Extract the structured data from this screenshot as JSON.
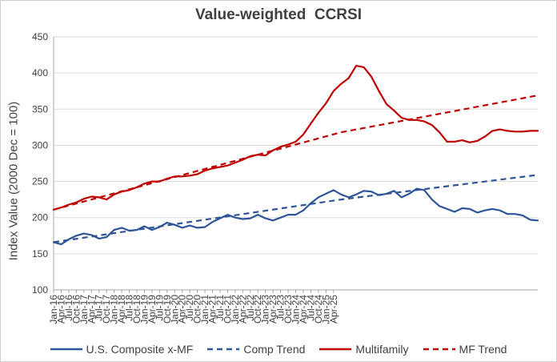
{
  "chart_data": {
    "type": "line",
    "title": "Value-weighted  CCRSI",
    "xlabel": "",
    "ylabel": "Index Value (2000 Dec = 100)",
    "ylim": [
      100,
      450
    ],
    "yticks": [
      100,
      150,
      200,
      250,
      300,
      350,
      400,
      450
    ],
    "grid": true,
    "legend_position": "bottom",
    "x_tick_labels": [
      "Jan-16",
      "Apr-16",
      "Jul-16",
      "Oct-16",
      "Jan-17",
      "Apr-17",
      "Jul-17",
      "Oct-17",
      "Jan-18",
      "Apr-18",
      "Jul-18",
      "Oct-18",
      "Jan-19",
      "Apr-19",
      "Jul-19",
      "Oct-19",
      "Jan-20",
      "Apr-20",
      "Jul-20",
      "Oct-20",
      "Jan-21",
      "Apr-21",
      "Jul-21",
      "Oct-21",
      "Jan-22",
      "Apr-22",
      "Jul-22",
      "Oct-22",
      "Jan-23",
      "Apr-23",
      "Jul-23",
      "Oct-23",
      "Jan-24",
      "Apr-24",
      "Jul-24",
      "Oct-24",
      "Jan-25",
      "Apr-25"
    ],
    "x_index_range": [
      0,
      116
    ],
    "series": [
      {
        "name": "U.S. Composite x-MF",
        "color": "#2e5597",
        "style": "solid",
        "points": [
          [
            0,
            166
          ],
          [
            3,
            163
          ],
          [
            6,
            170
          ],
          [
            9,
            175
          ],
          [
            12,
            178
          ],
          [
            15,
            176
          ],
          [
            18,
            171
          ],
          [
            21,
            173
          ],
          [
            24,
            183
          ],
          [
            27,
            186
          ],
          [
            30,
            182
          ],
          [
            33,
            183
          ],
          [
            36,
            188
          ],
          [
            39,
            183
          ],
          [
            42,
            187
          ],
          [
            45,
            193
          ],
          [
            48,
            190
          ],
          [
            51,
            186
          ],
          [
            54,
            189
          ],
          [
            57,
            186
          ],
          [
            60,
            187
          ],
          [
            63,
            194
          ],
          [
            66,
            199
          ],
          [
            69,
            204
          ],
          [
            72,
            200
          ],
          [
            75,
            198
          ],
          [
            78,
            199
          ],
          [
            81,
            204
          ],
          [
            84,
            199
          ],
          [
            87,
            196
          ],
          [
            90,
            200
          ],
          [
            93,
            204
          ],
          [
            96,
            204
          ],
          [
            99,
            210
          ],
          [
            102,
            220
          ],
          [
            105,
            228
          ],
          [
            108,
            233
          ],
          [
            111,
            238
          ],
          [
            114,
            232
          ],
          [
            117,
            228
          ],
          [
            120,
            232
          ],
          [
            123,
            237
          ],
          [
            126,
            236
          ],
          [
            129,
            231
          ],
          [
            132,
            233
          ],
          [
            135,
            237
          ],
          [
            138,
            228
          ],
          [
            141,
            233
          ],
          [
            144,
            240
          ],
          [
            147,
            238
          ],
          [
            150,
            225
          ],
          [
            153,
            216
          ],
          [
            156,
            212
          ],
          [
            159,
            208
          ],
          [
            162,
            213
          ],
          [
            165,
            212
          ],
          [
            168,
            207
          ],
          [
            171,
            210
          ],
          [
            174,
            212
          ],
          [
            177,
            210
          ],
          [
            180,
            205
          ],
          [
            183,
            205
          ],
          [
            186,
            203
          ],
          [
            189,
            197
          ],
          [
            192,
            196
          ]
        ]
      },
      {
        "name": "Comp Trend",
        "color": "#2e5597",
        "style": "dashed",
        "points": [
          [
            0,
            166
          ],
          [
            114,
            225
          ],
          [
            192,
            259
          ]
        ]
      },
      {
        "name": "Multifamily",
        "color": "#c00000",
        "style": "solid",
        "points": [
          [
            0,
            211
          ],
          [
            3,
            214
          ],
          [
            6,
            218
          ],
          [
            9,
            221
          ],
          [
            12,
            226
          ],
          [
            15,
            229
          ],
          [
            18,
            228
          ],
          [
            21,
            225
          ],
          [
            24,
            232
          ],
          [
            27,
            236
          ],
          [
            30,
            238
          ],
          [
            33,
            242
          ],
          [
            36,
            247
          ],
          [
            39,
            250
          ],
          [
            42,
            250
          ],
          [
            45,
            254
          ],
          [
            48,
            257
          ],
          [
            51,
            257
          ],
          [
            54,
            258
          ],
          [
            57,
            260
          ],
          [
            60,
            265
          ],
          [
            63,
            268
          ],
          [
            66,
            270
          ],
          [
            69,
            272
          ],
          [
            72,
            276
          ],
          [
            75,
            280
          ],
          [
            78,
            285
          ],
          [
            81,
            287
          ],
          [
            84,
            286
          ],
          [
            87,
            293
          ],
          [
            90,
            298
          ],
          [
            93,
            301
          ],
          [
            96,
            305
          ],
          [
            99,
            315
          ],
          [
            102,
            330
          ],
          [
            105,
            345
          ],
          [
            108,
            358
          ],
          [
            111,
            375
          ],
          [
            114,
            385
          ],
          [
            117,
            393
          ],
          [
            120,
            410
          ],
          [
            123,
            408
          ],
          [
            126,
            395
          ],
          [
            129,
            375
          ],
          [
            132,
            357
          ],
          [
            135,
            348
          ],
          [
            138,
            338
          ],
          [
            141,
            335
          ],
          [
            144,
            335
          ],
          [
            147,
            333
          ],
          [
            150,
            328
          ],
          [
            153,
            318
          ],
          [
            156,
            305
          ],
          [
            159,
            305
          ],
          [
            162,
            307
          ],
          [
            165,
            304
          ],
          [
            168,
            306
          ],
          [
            171,
            312
          ],
          [
            174,
            320
          ],
          [
            177,
            322
          ],
          [
            180,
            320
          ],
          [
            183,
            319
          ],
          [
            186,
            319
          ],
          [
            189,
            320
          ],
          [
            192,
            320
          ]
        ]
      },
      {
        "name": "MF Trend",
        "color": "#c00000",
        "style": "dashed",
        "points": [
          [
            0,
            211
          ],
          [
            114,
            318
          ],
          [
            192,
            369
          ]
        ]
      }
    ]
  }
}
